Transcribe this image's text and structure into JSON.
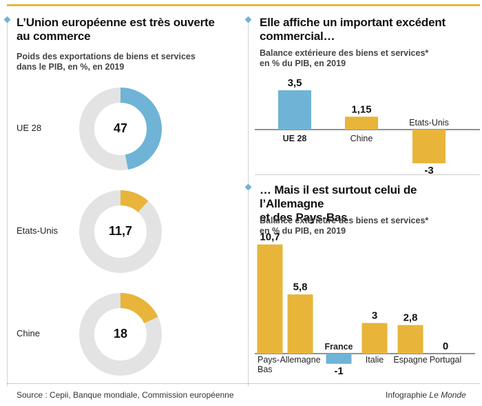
{
  "panel1": {
    "title_line1": "L’Union européenne est très ouverte",
    "title_line2": "au commerce",
    "subtitle_line1": "Poids des exportations de biens et services",
    "subtitle_line2": "dans le PIB, en %, en 2019"
  },
  "panel2": {
    "title_line1": "Elle affiche un important excédent",
    "title_line2": "commercial…",
    "subtitle_line1": "Balance extérieure des biens et services*",
    "subtitle_line2": "en % du PIB, en 2019"
  },
  "panel3": {
    "title_line1": "… Mais il est surtout celui de l’Allemagne",
    "title_line2": "et des Pays-Bas",
    "subtitle_line1": "Balance extérieure des biens et services*",
    "subtitle_line2": "en % du PIB, en 2019"
  },
  "footer": {
    "source": "Source : Cepii, Banque mondiale, Commission européenne",
    "credit_prefix": "Infographie ",
    "credit_brand": "Le Monde"
  },
  "colors": {
    "blue": "#6fb4d6",
    "yellow": "#e8b53a",
    "grey": "#e3e3e3"
  },
  "chart_data": [
    {
      "type": "pie",
      "categories": [
        "UE 28",
        "Etats-Unis",
        "Chine"
      ],
      "values": [
        47,
        11.7,
        18
      ],
      "value_labels": [
        "47",
        "11,7",
        "18"
      ]
    },
    {
      "type": "bar",
      "categories": [
        "UE 28",
        "Chine",
        "Etats-Unis"
      ],
      "values": [
        3.5,
        1.15,
        -3
      ],
      "value_labels": [
        "3,5",
        "1,15",
        "-3"
      ]
    },
    {
      "type": "bar",
      "categories": [
        "Pays-Bas",
        "Allemagne",
        "France",
        "Italie",
        "Espagne",
        "Portugal"
      ],
      "values": [
        10.7,
        5.8,
        -1,
        3,
        2.8,
        0
      ],
      "value_labels": [
        "10,7",
        "5,8",
        "-1",
        "3",
        "2,8",
        "0"
      ]
    }
  ]
}
